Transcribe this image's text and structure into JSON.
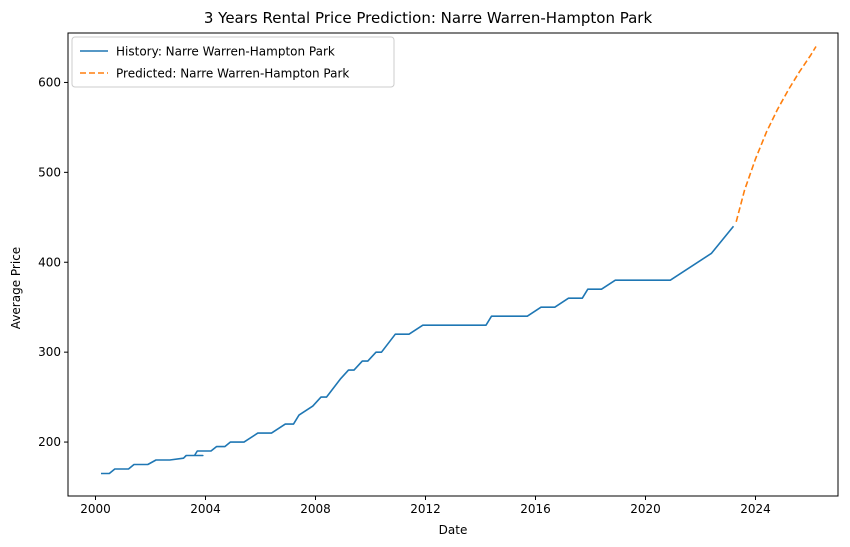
{
  "chart_data": {
    "type": "line",
    "title": "3 Years Rental Price Prediction: Narre Warren-Hampton Park",
    "xlabel": "Date",
    "ylabel": "Average Price",
    "xlim": [
      1999.0,
      2027.0
    ],
    "ylim": [
      140,
      655
    ],
    "xticks": [
      2000,
      2004,
      2008,
      2012,
      2016,
      2020,
      2024
    ],
    "yticks": [
      200,
      300,
      400,
      500,
      600
    ],
    "grid": false,
    "legend_position": "top-left",
    "series": [
      {
        "name": "History: Narre Warren-Hampton Park",
        "color": "#1f77b4",
        "style": "solid",
        "x": [
          2000.2,
          2000.5,
          2000.7,
          2001.2,
          2001.4,
          2001.9,
          2002.2,
          2002.7,
          2003.2,
          2003.3,
          2003.9,
          2003.6,
          2003.7,
          2004.2,
          2004.4,
          2004.7,
          2004.9,
          2005.2,
          2005.4,
          2005.9,
          2006.4,
          2006.9,
          2007.2,
          2007.4,
          2007.9,
          2008.2,
          2008.4,
          2008.9,
          2009.2,
          2009.4,
          2009.7,
          2009.9,
          2010.2,
          2010.4,
          2010.9,
          2011.4,
          2011.9,
          2012.4,
          2013.4,
          2014.2,
          2014.4,
          2015.7,
          2016.2,
          2016.7,
          2017.2,
          2017.7,
          2017.9,
          2018.4,
          2018.9,
          2019.4,
          2020.4,
          2020.9,
          2022.4,
          2023.2
        ],
        "y": [
          165,
          165,
          170,
          170,
          175,
          175,
          180,
          180,
          182,
          185,
          185,
          185,
          190,
          190,
          195,
          195,
          200,
          200,
          200,
          210,
          210,
          220,
          220,
          230,
          240,
          250,
          250,
          270,
          280,
          280,
          290,
          290,
          300,
          300,
          320,
          320,
          330,
          330,
          330,
          330,
          340,
          340,
          350,
          350,
          360,
          360,
          370,
          370,
          380,
          380,
          380,
          380,
          410,
          440
        ]
      },
      {
        "name": "Predicted: Narre Warren-Hampton Park",
        "color": "#ff7f0e",
        "style": "dashed",
        "x": [
          2023.3,
          2023.6,
          2024.0,
          2024.4,
          2024.8,
          2025.2,
          2025.6,
          2026.0,
          2026.2
        ],
        "y": [
          445,
          480,
          515,
          545,
          570,
          592,
          612,
          630,
          640
        ]
      }
    ]
  }
}
